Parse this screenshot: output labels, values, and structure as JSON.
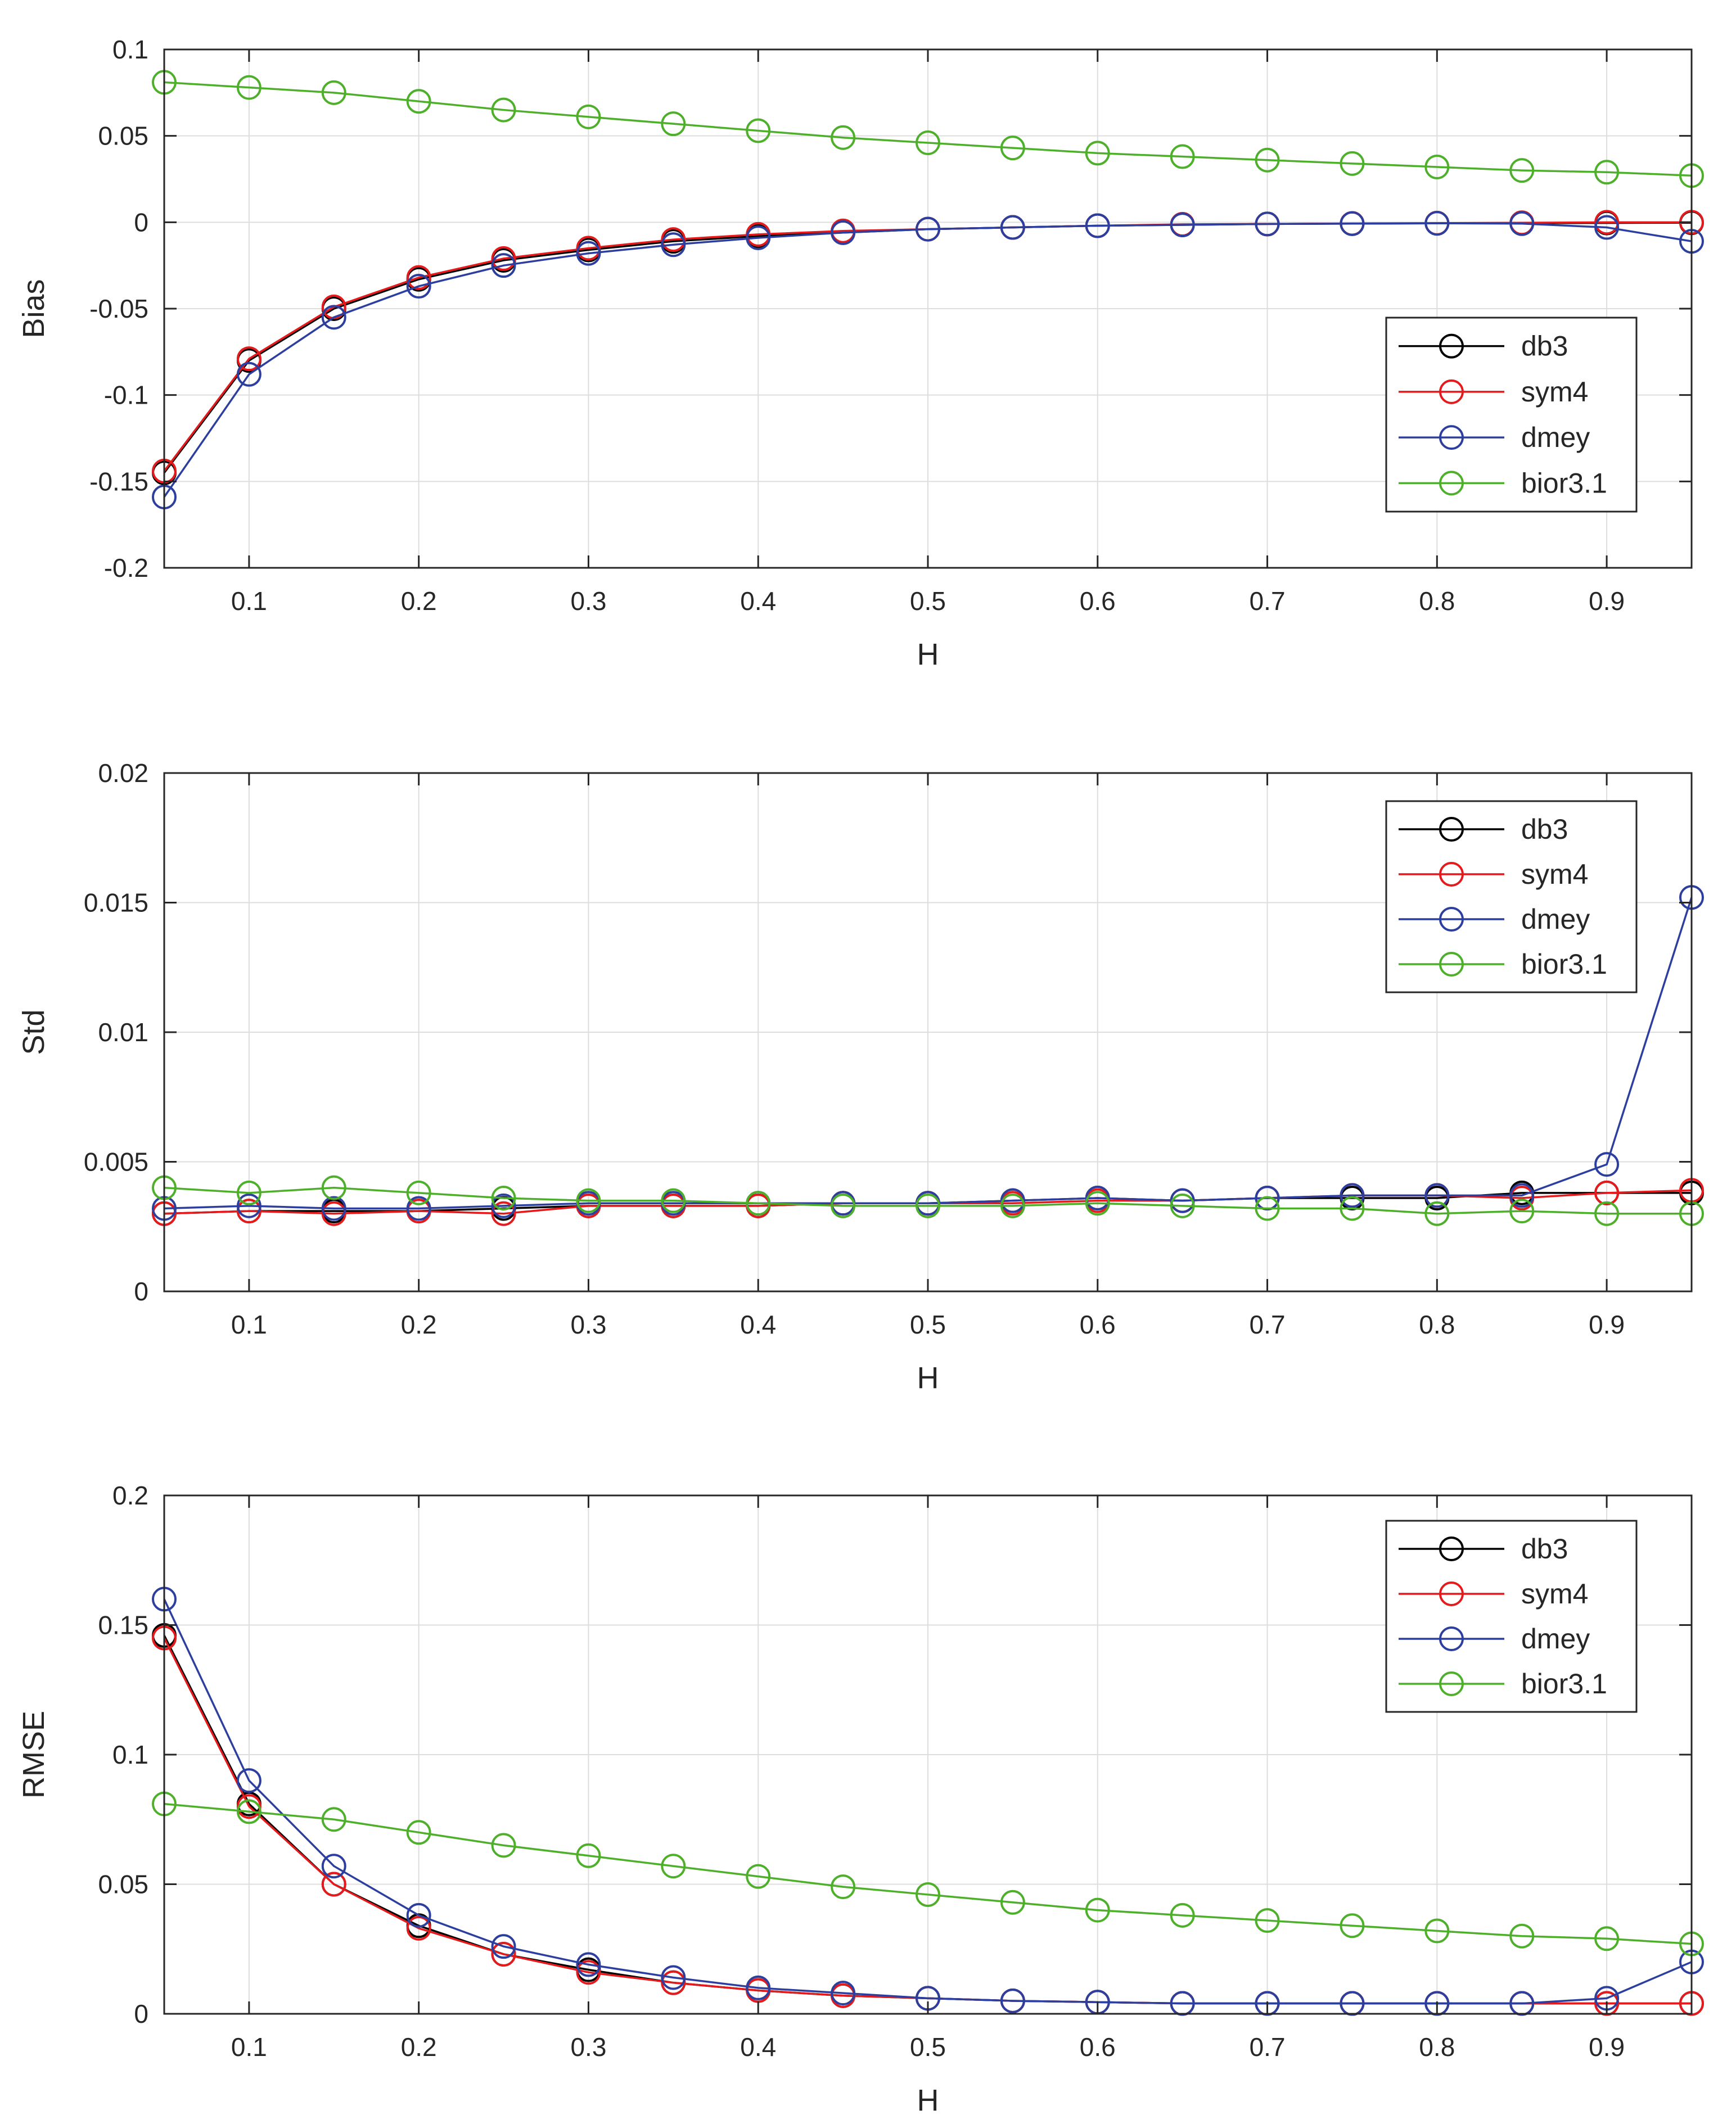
{
  "figure": {
    "colors": {
      "db3": "#000000",
      "sym4": "#e41a1c",
      "dmey": "#2d3f9e",
      "bior3.1": "#4daf2a",
      "grid": "#dddddd",
      "axis": "#262626"
    }
  },
  "chart_data": [
    {
      "type": "line",
      "title": "",
      "xlabel": "H",
      "ylabel": "Bias",
      "xlim": [
        0.05,
        0.95
      ],
      "ylim": [
        -0.2,
        0.1
      ],
      "xticks": [
        0.1,
        0.2,
        0.3,
        0.4,
        0.5,
        0.6,
        0.7,
        0.8,
        0.9
      ],
      "xtick_labels": [
        "0.1",
        "0.2",
        "0.3",
        "0.4",
        "0.5",
        "0.6",
        "0.7",
        "0.8",
        "0.9"
      ],
      "yticks": [
        -0.2,
        -0.15,
        -0.1,
        -0.05,
        0,
        0.05,
        0.1
      ],
      "ytick_labels": [
        "-0.2",
        "-0.15",
        "-0.1",
        "-0.05",
        "0",
        "0.05",
        "0.1"
      ],
      "grid": true,
      "legend_position": "center-right",
      "x": [
        0.05,
        0.1,
        0.15,
        0.2,
        0.25,
        0.3,
        0.35,
        0.4,
        0.45,
        0.5,
        0.55,
        0.6,
        0.65,
        0.7,
        0.75,
        0.8,
        0.85,
        0.9,
        0.95
      ],
      "series": [
        {
          "name": "db3",
          "values": [
            -0.145,
            -0.08,
            -0.05,
            -0.033,
            -0.022,
            -0.016,
            -0.011,
            -0.008,
            -0.006,
            -0.004,
            -0.003,
            -0.002,
            -0.0015,
            -0.001,
            -0.0008,
            -0.0006,
            -0.0005,
            -0.0004,
            -0.0003
          ]
        },
        {
          "name": "sym4",
          "values": [
            -0.144,
            -0.079,
            -0.049,
            -0.032,
            -0.021,
            -0.015,
            -0.01,
            -0.007,
            -0.005,
            -0.004,
            -0.003,
            -0.002,
            -0.0012,
            -0.001,
            -0.0007,
            -0.0005,
            -0.0003,
            0.0,
            0.0
          ]
        },
        {
          "name": "dmey",
          "values": [
            -0.159,
            -0.088,
            -0.055,
            -0.037,
            -0.025,
            -0.018,
            -0.013,
            -0.009,
            -0.006,
            -0.004,
            -0.003,
            -0.002,
            -0.0015,
            -0.001,
            -0.0008,
            -0.0006,
            -0.0008,
            -0.003,
            -0.011
          ]
        },
        {
          "name": "bior3.1",
          "values": [
            0.081,
            0.078,
            0.075,
            0.07,
            0.065,
            0.061,
            0.057,
            0.053,
            0.049,
            0.046,
            0.043,
            0.04,
            0.038,
            0.036,
            0.034,
            0.032,
            0.03,
            0.029,
            0.027
          ]
        }
      ]
    },
    {
      "type": "line",
      "title": "",
      "xlabel": "H",
      "ylabel": "Std",
      "xlim": [
        0.05,
        0.95
      ],
      "ylim": [
        0,
        0.02
      ],
      "xticks": [
        0.1,
        0.2,
        0.3,
        0.4,
        0.5,
        0.6,
        0.7,
        0.8,
        0.9
      ],
      "xtick_labels": [
        "0.1",
        "0.2",
        "0.3",
        "0.4",
        "0.5",
        "0.6",
        "0.7",
        "0.8",
        "0.9"
      ],
      "yticks": [
        0,
        0.005,
        0.01,
        0.015,
        0.02
      ],
      "ytick_labels": [
        "0",
        "0.005",
        "0.01",
        "0.015",
        "0.02"
      ],
      "grid": true,
      "legend_position": "top-right",
      "x": [
        0.05,
        0.1,
        0.15,
        0.2,
        0.25,
        0.3,
        0.35,
        0.4,
        0.45,
        0.5,
        0.55,
        0.6,
        0.65,
        0.7,
        0.75,
        0.8,
        0.85,
        0.9,
        0.95
      ],
      "series": [
        {
          "name": "db3",
          "values": [
            0.003,
            0.0031,
            0.0031,
            0.0031,
            0.0032,
            0.0033,
            0.0033,
            0.0033,
            0.0034,
            0.0034,
            0.0035,
            0.0036,
            0.0035,
            0.0036,
            0.0036,
            0.0036,
            0.0038,
            0.0038,
            0.0038
          ]
        },
        {
          "name": "sym4",
          "values": [
            0.003,
            0.0031,
            0.003,
            0.0031,
            0.003,
            0.0033,
            0.0033,
            0.0033,
            0.0034,
            0.0034,
            0.0034,
            0.0035,
            0.0035,
            0.0036,
            0.0037,
            0.0037,
            0.0036,
            0.0038,
            0.0039
          ]
        },
        {
          "name": "dmey",
          "values": [
            0.0032,
            0.0033,
            0.0032,
            0.0032,
            0.0033,
            0.0034,
            0.0034,
            0.0034,
            0.0034,
            0.0034,
            0.0035,
            0.0036,
            0.0035,
            0.0036,
            0.0037,
            0.0037,
            0.0037,
            0.0049,
            0.0152
          ]
        },
        {
          "name": "bior3.1",
          "values": [
            0.004,
            0.0038,
            0.004,
            0.0038,
            0.0036,
            0.0035,
            0.0035,
            0.0034,
            0.0033,
            0.0033,
            0.0033,
            0.0034,
            0.0033,
            0.0032,
            0.0032,
            0.003,
            0.0031,
            0.003,
            0.003
          ]
        }
      ]
    },
    {
      "type": "line",
      "title": "",
      "xlabel": "H",
      "ylabel": "RMSE",
      "xlim": [
        0.05,
        0.95
      ],
      "ylim": [
        0,
        0.2
      ],
      "xticks": [
        0.1,
        0.2,
        0.3,
        0.4,
        0.5,
        0.6,
        0.7,
        0.8,
        0.9
      ],
      "xtick_labels": [
        "0.1",
        "0.2",
        "0.3",
        "0.4",
        "0.5",
        "0.6",
        "0.7",
        "0.8",
        "0.9"
      ],
      "yticks": [
        0,
        0.05,
        0.1,
        0.15,
        0.2
      ],
      "ytick_labels": [
        "0",
        "0.05",
        "0.1",
        "0.15",
        "0.2"
      ],
      "grid": true,
      "legend_position": "top-right",
      "x": [
        0.05,
        0.1,
        0.15,
        0.2,
        0.25,
        0.3,
        0.35,
        0.4,
        0.45,
        0.5,
        0.55,
        0.6,
        0.65,
        0.7,
        0.75,
        0.8,
        0.85,
        0.9,
        0.95
      ],
      "series": [
        {
          "name": "db3",
          "values": [
            0.146,
            0.081,
            0.05,
            0.034,
            0.023,
            0.017,
            0.012,
            0.009,
            0.007,
            0.006,
            0.005,
            0.0045,
            0.004,
            0.004,
            0.004,
            0.004,
            0.004,
            0.004,
            0.004
          ]
        },
        {
          "name": "sym4",
          "values": [
            0.145,
            0.08,
            0.05,
            0.033,
            0.023,
            0.016,
            0.012,
            0.009,
            0.007,
            0.006,
            0.005,
            0.0045,
            0.004,
            0.004,
            0.004,
            0.004,
            0.004,
            0.004,
            0.004
          ]
        },
        {
          "name": "dmey",
          "values": [
            0.16,
            0.09,
            0.057,
            0.038,
            0.026,
            0.019,
            0.014,
            0.01,
            0.008,
            0.006,
            0.005,
            0.0045,
            0.004,
            0.004,
            0.004,
            0.004,
            0.004,
            0.006,
            0.02
          ]
        },
        {
          "name": "bior3.1",
          "values": [
            0.081,
            0.078,
            0.075,
            0.07,
            0.065,
            0.061,
            0.057,
            0.053,
            0.049,
            0.046,
            0.043,
            0.04,
            0.038,
            0.036,
            0.034,
            0.032,
            0.03,
            0.029,
            0.027
          ]
        }
      ]
    }
  ]
}
